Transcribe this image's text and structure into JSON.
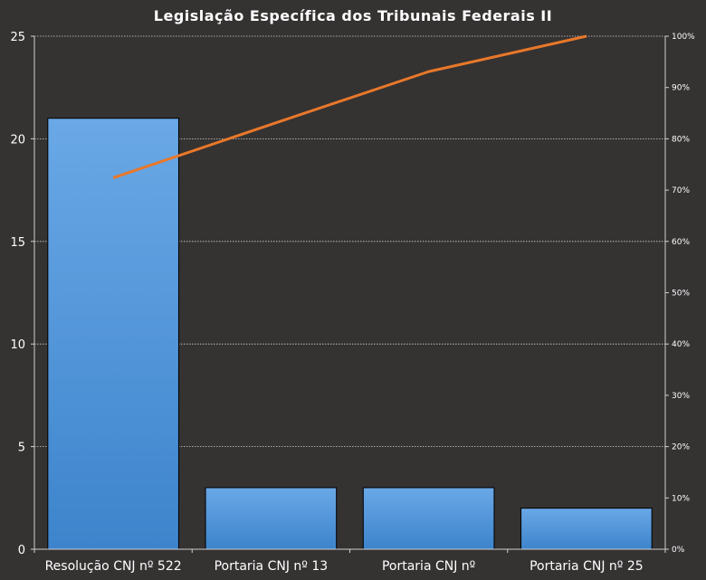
{
  "chart_data": {
    "type": "bar",
    "title": "Legislação Específica dos Tribunais Federais II",
    "categories": [
      "Resolução CNJ nº 522",
      "Portaria CNJ nº 13",
      "Portaria CNJ nº",
      "Portaria CNJ nº 25"
    ],
    "series": [
      {
        "type": "bar",
        "values": [
          21,
          3,
          3,
          2
        ],
        "color": "#4a8fd6"
      },
      {
        "type": "line",
        "axis": "right",
        "values": [
          72.4,
          82.8,
          93.1,
          100
        ],
        "color": "#e8782a"
      }
    ],
    "ylim": [
      0,
      25
    ],
    "y_ticks": [
      "0",
      "5",
      "10",
      "15",
      "20",
      "25"
    ],
    "y2lim": [
      0,
      100
    ],
    "y2_ticks": [
      "0%",
      "10%",
      "20%",
      "30%",
      "40%",
      "50%",
      "60%",
      "70%",
      "80%",
      "90%",
      "100%"
    ],
    "grid": true,
    "legend": "none",
    "colors": {
      "background": "#353232",
      "bar": "#4a8fd6",
      "line": "#e8782a",
      "grid": "#d0d0d0",
      "text": "#ffffff"
    }
  }
}
